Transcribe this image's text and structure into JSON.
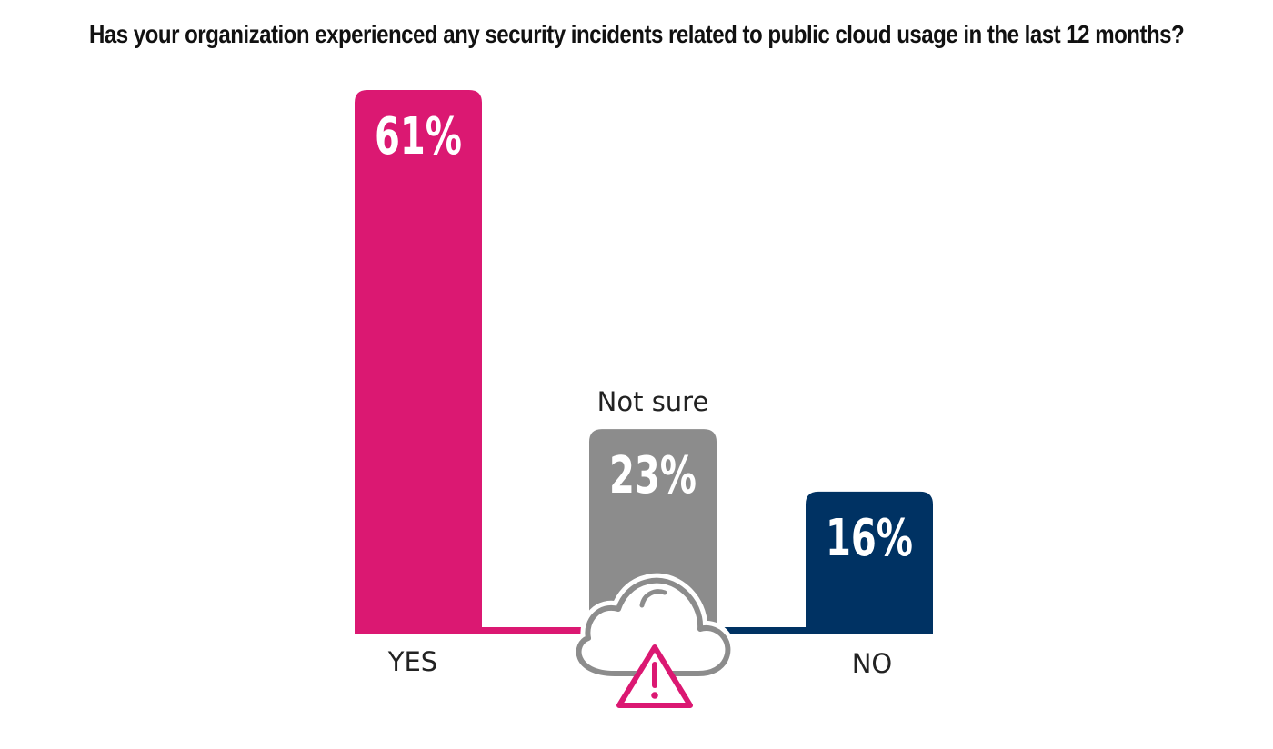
{
  "chart_data": {
    "type": "bar",
    "title": "Has your organization experienced any security incidents related to public cloud usage in the last 12 months?",
    "categories": [
      "YES",
      "Not sure",
      "NO"
    ],
    "values": [
      61,
      23,
      16
    ],
    "value_labels": [
      "61%",
      "23%",
      "16%"
    ],
    "colors": [
      "#db1872",
      "#8c8c8c",
      "#003263"
    ],
    "ylim": [
      0,
      61
    ],
    "grid": false,
    "legend": "none"
  },
  "icons": {
    "center": "cloud-warning-icon",
    "center_outline_color": "#8c8c8c",
    "center_warning_color": "#db1872"
  }
}
